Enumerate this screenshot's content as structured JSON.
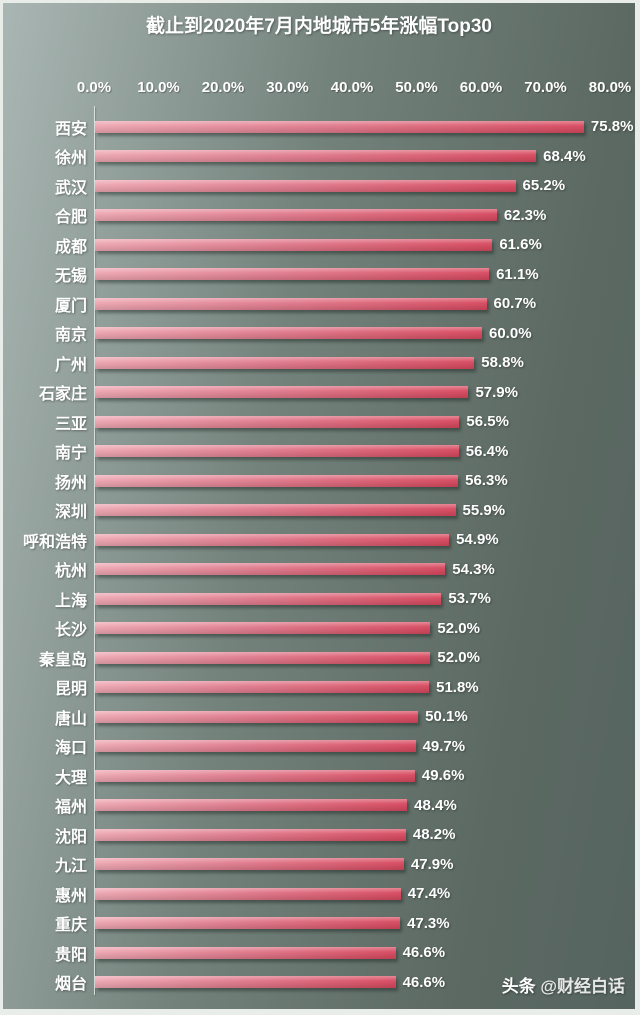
{
  "title": "截止到2020年7月内地城市5年涨幅Top30",
  "axis": {
    "ticks": [
      "0.0%",
      "10.0%",
      "20.0%",
      "30.0%",
      "40.0%",
      "50.0%",
      "60.0%",
      "70.0%",
      "80.0%"
    ]
  },
  "watermark": {
    "brand": "头条",
    "handle": "@财经白话"
  },
  "colors": {
    "bar_gradient_start": "#eda6b1",
    "bar_gradient_end": "#d7475d",
    "background_light": "#a9b6b3",
    "background_dark": "#566460",
    "text": "#ffffff",
    "frame_border": "#e9ede9"
  },
  "chart_data": {
    "type": "bar",
    "orientation": "horizontal",
    "title": "截止到2020年7月内地城市5年涨幅Top30",
    "xlabel": "",
    "ylabel": "",
    "xlim": [
      0,
      80
    ],
    "x_tick_values": [
      0,
      10,
      20,
      30,
      40,
      50,
      60,
      70,
      80
    ],
    "grid": false,
    "legend": false,
    "categories": [
      "西安",
      "徐州",
      "武汉",
      "合肥",
      "成都",
      "无锡",
      "厦门",
      "南京",
      "广州",
      "石家庄",
      "三亚",
      "南宁",
      "扬州",
      "深圳",
      "呼和浩特",
      "杭州",
      "上海",
      "长沙",
      "秦皇岛",
      "昆明",
      "唐山",
      "海口",
      "大理",
      "福州",
      "沈阳",
      "九江",
      "惠州",
      "重庆",
      "贵阳",
      "烟台"
    ],
    "values": [
      75.8,
      68.4,
      65.2,
      62.3,
      61.6,
      61.1,
      60.7,
      60.0,
      58.8,
      57.9,
      56.5,
      56.4,
      56.3,
      55.9,
      54.9,
      54.3,
      53.7,
      52.0,
      52.0,
      51.8,
      50.1,
      49.7,
      49.6,
      48.4,
      48.2,
      47.9,
      47.4,
      47.3,
      46.6,
      46.6
    ],
    "value_labels": [
      "75.8%",
      "68.4%",
      "65.2%",
      "62.3%",
      "61.6%",
      "61.1%",
      "60.7%",
      "60.0%",
      "58.8%",
      "57.9%",
      "56.5%",
      "56.4%",
      "56.3%",
      "55.9%",
      "54.9%",
      "54.3%",
      "53.7%",
      "52.0%",
      "52.0%",
      "51.8%",
      "50.1%",
      "49.7%",
      "49.6%",
      "48.4%",
      "48.2%",
      "47.9%",
      "47.4%",
      "47.3%",
      "46.6%",
      "46.6%"
    ]
  }
}
